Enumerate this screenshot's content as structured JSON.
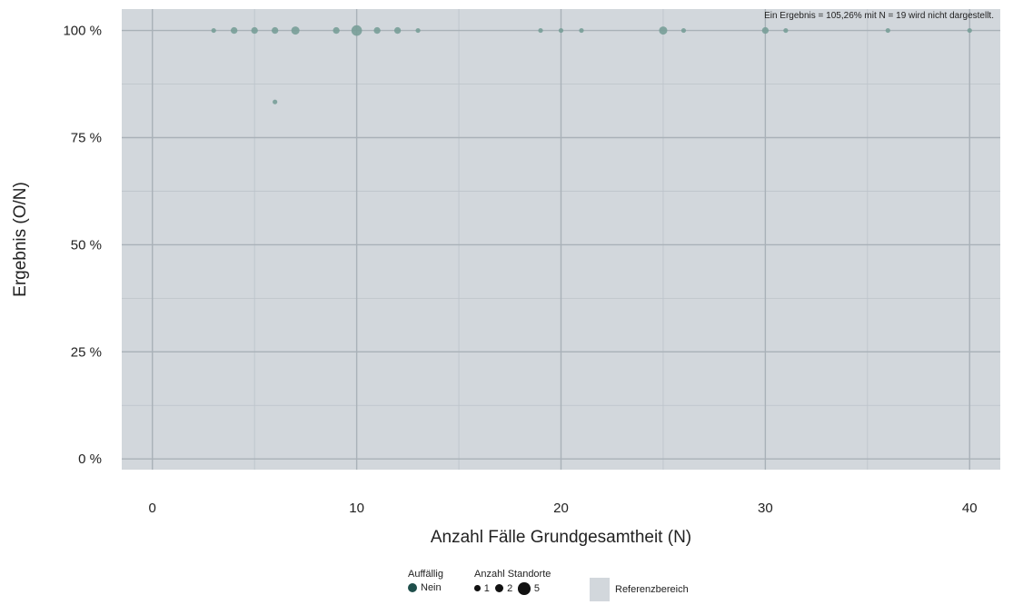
{
  "chart_data": {
    "type": "scatter",
    "title": "",
    "annotation": "Ein Ergebnis = 105,26% mit N = 19 wird nicht dargestellt.",
    "xlabel": "Anzahl Fälle Grundgesamtheit (N)",
    "ylabel": "Ergebnis (O/N)",
    "xlim": [
      -1.5,
      41.5
    ],
    "ylim": [
      -2.5,
      105
    ],
    "xticks": [
      0,
      10,
      20,
      30,
      40
    ],
    "xtick_labels": [
      "0",
      "10",
      "20",
      "30",
      "40"
    ],
    "yticks": [
      0,
      25,
      50,
      75,
      100
    ],
    "ytick_labels": [
      "0 %",
      "25 %",
      "50 %",
      "75 %",
      "100 %"
    ],
    "grid": true,
    "reference_range": [
      0,
      100
    ],
    "point_color": "#789f98",
    "reference_color": "#d2d7dc",
    "points": [
      {
        "x": 3,
        "y": 100,
        "count": 1
      },
      {
        "x": 4,
        "y": 100,
        "count": 2
      },
      {
        "x": 5,
        "y": 100,
        "count": 2
      },
      {
        "x": 6,
        "y": 100,
        "count": 2
      },
      {
        "x": 6,
        "y": 83.33,
        "count": 1
      },
      {
        "x": 7,
        "y": 100,
        "count": 3
      },
      {
        "x": 9,
        "y": 100,
        "count": 2
      },
      {
        "x": 10,
        "y": 100,
        "count": 5
      },
      {
        "x": 11,
        "y": 100,
        "count": 2
      },
      {
        "x": 12,
        "y": 100,
        "count": 2
      },
      {
        "x": 13,
        "y": 100,
        "count": 1
      },
      {
        "x": 19,
        "y": 100,
        "count": 1
      },
      {
        "x": 20,
        "y": 100,
        "count": 1
      },
      {
        "x": 21,
        "y": 100,
        "count": 1
      },
      {
        "x": 25,
        "y": 100,
        "count": 3
      },
      {
        "x": 26,
        "y": 100,
        "count": 1
      },
      {
        "x": 30,
        "y": 100,
        "count": 2
      },
      {
        "x": 31,
        "y": 100,
        "count": 1
      },
      {
        "x": 36,
        "y": 100,
        "count": 1
      },
      {
        "x": 40,
        "y": 100,
        "count": 1
      }
    ]
  },
  "legend": {
    "flag_title": "Auffällig",
    "flag_label": "Nein",
    "flag_color": "#1f4f4b",
    "size_title": "Anzahl Standorte",
    "size_labels": [
      "1",
      "2",
      "5"
    ],
    "size_counts": [
      1,
      2,
      5
    ],
    "reference_label": "Referenzbereich"
  }
}
